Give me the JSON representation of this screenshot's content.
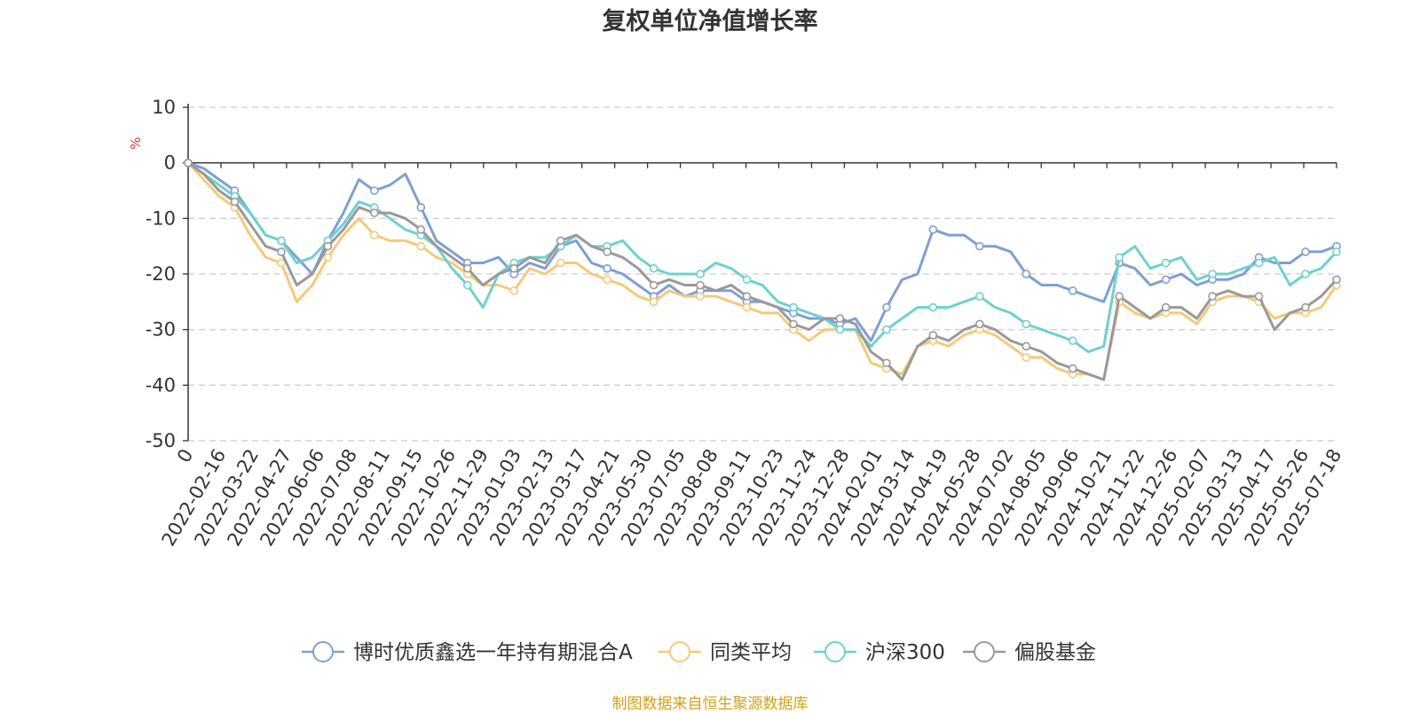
{
  "chart_data": {
    "type": "line",
    "title": "复权单位净值增长率",
    "ylabel": "%",
    "ylim": [
      -50,
      10
    ],
    "yticks": [
      10,
      0,
      -10,
      -20,
      -30,
      -40,
      -50
    ],
    "x_tick_labels": [
      "0",
      "2022-02-16",
      "2022-03-22",
      "2022-04-27",
      "2022-06-06",
      "2022-07-08",
      "2022-08-11",
      "2022-09-15",
      "2022-10-26",
      "2022-11-29",
      "2023-01-03",
      "2023-02-13",
      "2023-03-17",
      "2023-04-21",
      "2023-05-30",
      "2023-07-05",
      "2023-08-08",
      "2023-09-11",
      "2023-10-23",
      "2023-11-24",
      "2023-12-28",
      "2024-02-01",
      "2024-03-14",
      "2024-04-19",
      "2024-05-28",
      "2024-07-02",
      "2024-08-05",
      "2024-09-06",
      "2024-10-21",
      "2024-11-22",
      "2024-12-26",
      "2025-02-07",
      "2025-03-13",
      "2025-04-17",
      "2025-05-26",
      "2025-07-18"
    ],
    "grid": true,
    "legend_position": "bottom",
    "series": [
      {
        "name": "博时优质鑫选一年持有期混合A",
        "color": "#7f9fd3",
        "values": [
          0,
          -1,
          -3,
          -5,
          -9,
          -13,
          -14,
          -17,
          -20,
          -14,
          -9,
          -3,
          -5,
          -4,
          -2,
          -8,
          -14,
          -16,
          -18,
          -18,
          -17,
          -20,
          -18,
          -19,
          -15,
          -14,
          -18,
          -19,
          -20,
          -22,
          -24,
          -22,
          -24,
          -23,
          -23,
          -23,
          -25,
          -25,
          -26,
          -27,
          -28,
          -28,
          -29,
          -28,
          -32,
          -26,
          -21,
          -20,
          -12,
          -13,
          -13,
          -15,
          -15,
          -16,
          -20,
          -22,
          -22,
          -23,
          -24,
          -25,
          -18,
          -19,
          -22,
          -21,
          -20,
          -22,
          -21,
          -21,
          -20,
          -17,
          -18,
          -18,
          -16,
          -16,
          -15
        ]
      },
      {
        "name": "同类平均",
        "color": "#f5c97a",
        "values": [
          0,
          -3,
          -6,
          -8,
          -13,
          -17,
          -18,
          -25,
          -22,
          -17,
          -13,
          -10,
          -13,
          -14,
          -14,
          -15,
          -17,
          -18,
          -20,
          -22,
          -22,
          -23,
          -19,
          -20,
          -18,
          -18,
          -20,
          -21,
          -22,
          -24,
          -25,
          -23,
          -24,
          -24,
          -24,
          -25,
          -26,
          -27,
          -27,
          -30,
          -32,
          -30,
          -30,
          -30,
          -36,
          -37,
          -38,
          -33,
          -32,
          -33,
          -31,
          -30,
          -31,
          -33,
          -35,
          -35,
          -37,
          -38,
          -38,
          -39,
          -25,
          -27,
          -28,
          -27,
          -27,
          -29,
          -25,
          -24,
          -24,
          -25,
          -28,
          -27,
          -27,
          -26,
          -22
        ]
      },
      {
        "name": "沪深300",
        "color": "#6fd0d0",
        "values": [
          0,
          -2,
          -4,
          -6,
          -9,
          -13,
          -14,
          -18,
          -17,
          -14,
          -11,
          -7,
          -8,
          -10,
          -12,
          -13,
          -15,
          -19,
          -22,
          -26,
          -20,
          -18,
          -17,
          -17,
          -15,
          -13,
          -15,
          -15,
          -14,
          -17,
          -19,
          -20,
          -20,
          -20,
          -18,
          -19,
          -21,
          -22,
          -25,
          -26,
          -27,
          -28,
          -30,
          -30,
          -33,
          -30,
          -28,
          -26,
          -26,
          -26,
          -25,
          -24,
          -26,
          -27,
          -29,
          -30,
          -31,
          -32,
          -34,
          -33,
          -17,
          -15,
          -19,
          -18,
          -17,
          -21,
          -20,
          -20,
          -19,
          -18,
          -17,
          -22,
          -20,
          -19,
          -16
        ]
      },
      {
        "name": "偏股基金",
        "color": "#999999",
        "values": [
          0,
          -2,
          -5,
          -7,
          -11,
          -15,
          -16,
          -22,
          -20,
          -15,
          -12,
          -8,
          -9,
          -9,
          -10,
          -12,
          -15,
          -17,
          -19,
          -22,
          -20,
          -19,
          -17,
          -18,
          -14,
          -13,
          -15,
          -16,
          -17,
          -19,
          -22,
          -21,
          -22,
          -22,
          -23,
          -22,
          -24,
          -25,
          -26,
          -29,
          -30,
          -28,
          -28,
          -29,
          -34,
          -36,
          -39,
          -33,
          -31,
          -32,
          -30,
          -29,
          -30,
          -32,
          -33,
          -34,
          -36,
          -37,
          -38,
          -39,
          -24,
          -26,
          -28,
          -26,
          -26,
          -28,
          -24,
          -23,
          -24,
          -24,
          -30,
          -27,
          -26,
          -24,
          -21
        ]
      }
    ]
  },
  "source_note": "制图数据来自恒生聚源数据库"
}
